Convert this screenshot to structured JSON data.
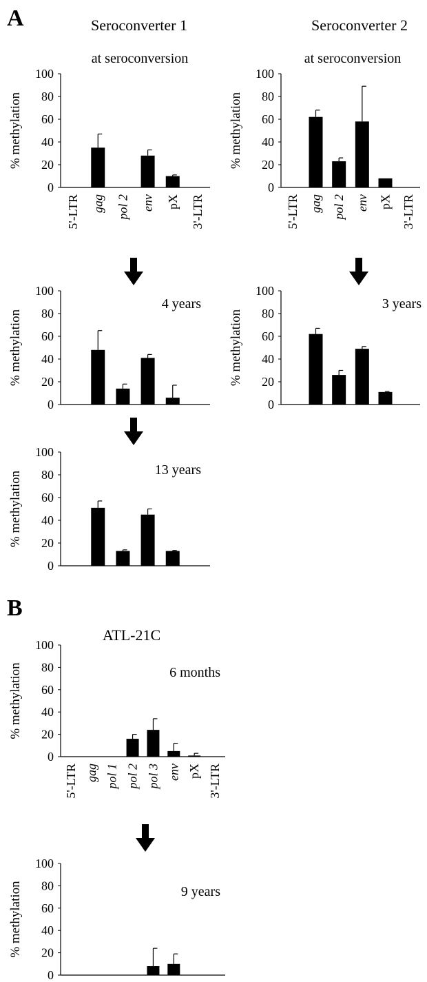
{
  "panel_A": {
    "label": "A",
    "header_1": "Seroconverter 1",
    "header_2": "Seroconverter 2",
    "subtitle_1": "at seroconversion",
    "subtitle_2": "at seroconversion"
  },
  "panel_B": {
    "label": "B",
    "header": "ATL-21C"
  },
  "colors": {
    "bar": "#000000",
    "axis": "#000000"
  },
  "icons": [
    "down-arrow-icon"
  ],
  "chart_data": [
    {
      "id": "s1-seroconversion",
      "type": "bar",
      "categories": [
        "5'-LTR",
        "gag",
        "pol 2",
        "env",
        "pX",
        "3'-LTR"
      ],
      "italic_categories": [
        "gag",
        "pol 2",
        "env"
      ],
      "values": [
        0,
        35,
        0,
        28,
        10,
        0
      ],
      "errors": [
        0,
        12,
        0,
        5,
        1,
        0
      ],
      "ylabel": "% methylation",
      "ylim": [
        0,
        100
      ],
      "yticks": [
        0,
        20,
        40,
        60,
        80,
        100
      ],
      "annotation": "",
      "show_categories": true
    },
    {
      "id": "s2-seroconversion",
      "type": "bar",
      "categories": [
        "5'-LTR",
        "gag",
        "pol 2",
        "env",
        "pX",
        "3'-LTR"
      ],
      "italic_categories": [
        "gag",
        "pol 2",
        "env"
      ],
      "values": [
        0,
        62,
        23,
        58,
        8,
        0
      ],
      "errors": [
        0,
        6,
        3,
        31,
        0,
        0
      ],
      "ylabel": "% methylation",
      "ylim": [
        0,
        100
      ],
      "yticks": [
        0,
        20,
        40,
        60,
        80,
        100
      ],
      "annotation": "",
      "show_categories": true
    },
    {
      "id": "s1-4years",
      "type": "bar",
      "categories": [
        "5'-LTR",
        "gag",
        "pol 2",
        "env",
        "pX",
        "3'-LTR"
      ],
      "italic_categories": [
        "gag",
        "pol 2",
        "env"
      ],
      "values": [
        0,
        48,
        14,
        41,
        6,
        0
      ],
      "errors": [
        0,
        17,
        4,
        3,
        11,
        0
      ],
      "ylabel": "% methylation",
      "ylim": [
        0,
        100
      ],
      "yticks": [
        0,
        20,
        40,
        60,
        80,
        100
      ],
      "annotation": "4 years",
      "show_categories": false
    },
    {
      "id": "s2-3years",
      "type": "bar",
      "categories": [
        "5'-LTR",
        "gag",
        "pol 2",
        "env",
        "pX",
        "3'-LTR"
      ],
      "italic_categories": [
        "gag",
        "pol 2",
        "env"
      ],
      "values": [
        0,
        62,
        26,
        49,
        11,
        0
      ],
      "errors": [
        0,
        5,
        4,
        2,
        0.5,
        0
      ],
      "ylabel": "% methylation",
      "ylim": [
        0,
        100
      ],
      "yticks": [
        0,
        20,
        40,
        60,
        80,
        100
      ],
      "annotation": "3 years",
      "show_categories": false
    },
    {
      "id": "s1-13years",
      "type": "bar",
      "categories": [
        "5'-LTR",
        "gag",
        "pol 2",
        "env",
        "pX",
        "3'-LTR"
      ],
      "italic_categories": [
        "gag",
        "pol 2",
        "env"
      ],
      "values": [
        0,
        51,
        13,
        45,
        13,
        0
      ],
      "errors": [
        0,
        6,
        1,
        5,
        0.5,
        0
      ],
      "ylabel": "% methylation",
      "ylim": [
        0,
        100
      ],
      "yticks": [
        0,
        20,
        40,
        60,
        80,
        100
      ],
      "annotation": "13 years",
      "show_categories": false
    },
    {
      "id": "atl-6months",
      "type": "bar",
      "categories": [
        "5'-LTR",
        "gag",
        "pol 1",
        "pol 2",
        "pol 3",
        "env",
        "pX",
        "3'-LTR"
      ],
      "italic_categories": [
        "gag",
        "pol 1",
        "pol 2",
        "pol 3",
        "env"
      ],
      "values": [
        0,
        0,
        0,
        16,
        24,
        5,
        1,
        0
      ],
      "errors": [
        0,
        0,
        0,
        4,
        10,
        7,
        2,
        0
      ],
      "ylabel": "% methylation",
      "ylim": [
        0,
        100
      ],
      "yticks": [
        0,
        20,
        40,
        60,
        80,
        100
      ],
      "annotation": "6 months",
      "show_categories": true
    },
    {
      "id": "atl-9years",
      "type": "bar",
      "categories": [
        "5'-LTR",
        "gag",
        "pol 1",
        "pol 2",
        "pol 3",
        "env",
        "pX",
        "3'-LTR"
      ],
      "italic_categories": [
        "gag",
        "pol 1",
        "pol 2",
        "pol 3",
        "env"
      ],
      "values": [
        0,
        0,
        0,
        0,
        8,
        10,
        0,
        0
      ],
      "errors": [
        0,
        0,
        0,
        0,
        16,
        9,
        0,
        0
      ],
      "ylabel": "% methylation",
      "ylim": [
        0,
        100
      ],
      "yticks": [
        0,
        20,
        40,
        60,
        80,
        100
      ],
      "annotation": "9 years",
      "show_categories": false
    }
  ]
}
